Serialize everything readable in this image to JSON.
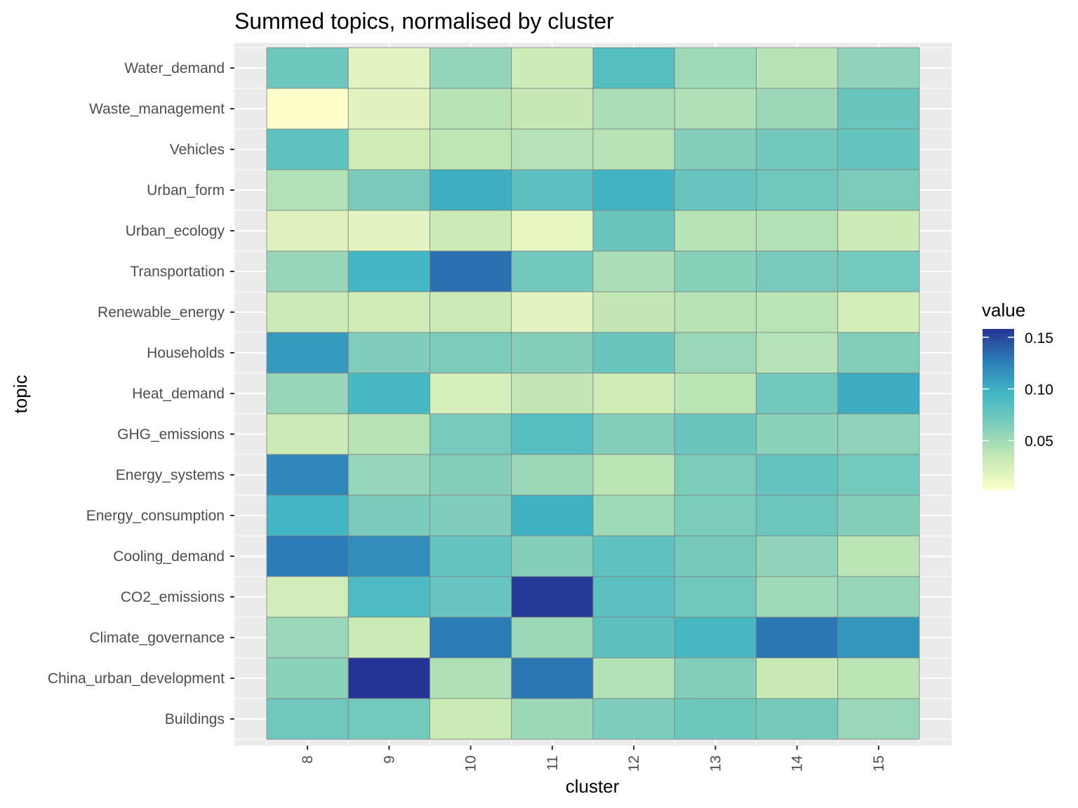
{
  "chart_data": {
    "type": "heatmap",
    "title": "Summed topics, normalised by cluster",
    "xlabel": "cluster",
    "ylabel": "topic",
    "x_categories": [
      "8",
      "9",
      "10",
      "11",
      "12",
      "13",
      "14",
      "15"
    ],
    "y_categories": [
      "Water_demand",
      "Waste_management",
      "Vehicles",
      "Urban_form",
      "Urban_ecology",
      "Transportation",
      "Renewable_energy",
      "Households",
      "Heat_demand",
      "GHG_emissions",
      "Energy_systems",
      "Energy_consumption",
      "Cooling_demand",
      "CO2_emissions",
      "Climate_governance",
      "China_urban_development",
      "Buildings"
    ],
    "values": [
      [
        0.073,
        0.018,
        0.056,
        0.03,
        0.085,
        0.051,
        0.04,
        0.058
      ],
      [
        0.002,
        0.019,
        0.04,
        0.034,
        0.046,
        0.043,
        0.052,
        0.075
      ],
      [
        0.08,
        0.029,
        0.037,
        0.041,
        0.04,
        0.063,
        0.071,
        0.077
      ],
      [
        0.042,
        0.067,
        0.1,
        0.082,
        0.097,
        0.076,
        0.072,
        0.066
      ],
      [
        0.02,
        0.018,
        0.031,
        0.015,
        0.075,
        0.04,
        0.042,
        0.03
      ],
      [
        0.054,
        0.094,
        0.133,
        0.071,
        0.046,
        0.061,
        0.068,
        0.07
      ],
      [
        0.031,
        0.029,
        0.031,
        0.017,
        0.035,
        0.04,
        0.039,
        0.026
      ],
      [
        0.112,
        0.064,
        0.066,
        0.062,
        0.075,
        0.053,
        0.041,
        0.063
      ],
      [
        0.054,
        0.092,
        0.025,
        0.035,
        0.029,
        0.038,
        0.071,
        0.101
      ],
      [
        0.031,
        0.04,
        0.068,
        0.085,
        0.063,
        0.075,
        0.059,
        0.058
      ],
      [
        0.122,
        0.055,
        0.062,
        0.052,
        0.038,
        0.066,
        0.078,
        0.07
      ],
      [
        0.095,
        0.067,
        0.064,
        0.098,
        0.051,
        0.066,
        0.074,
        0.062
      ],
      [
        0.128,
        0.119,
        0.077,
        0.062,
        0.08,
        0.069,
        0.058,
        0.038
      ],
      [
        0.027,
        0.089,
        0.076,
        0.156,
        0.082,
        0.072,
        0.051,
        0.054
      ],
      [
        0.053,
        0.031,
        0.128,
        0.052,
        0.081,
        0.092,
        0.13,
        0.114
      ],
      [
        0.059,
        0.158,
        0.043,
        0.13,
        0.042,
        0.063,
        0.032,
        0.038
      ],
      [
        0.072,
        0.07,
        0.031,
        0.052,
        0.065,
        0.073,
        0.069,
        0.053
      ]
    ],
    "color_scale": {
      "name": "value",
      "colors": [
        "#ffffcc",
        "#c7e9b4",
        "#7fcdbb",
        "#41b6c4",
        "#2c7fb8",
        "#253494"
      ],
      "range": [
        0.002,
        0.158
      ],
      "ticks": [
        0.05,
        0.1,
        0.15
      ],
      "tick_labels": [
        "0.05",
        "0.10",
        "0.15"
      ]
    },
    "panel_background": "#ebebeb",
    "grid": true,
    "legend_position": "right"
  }
}
